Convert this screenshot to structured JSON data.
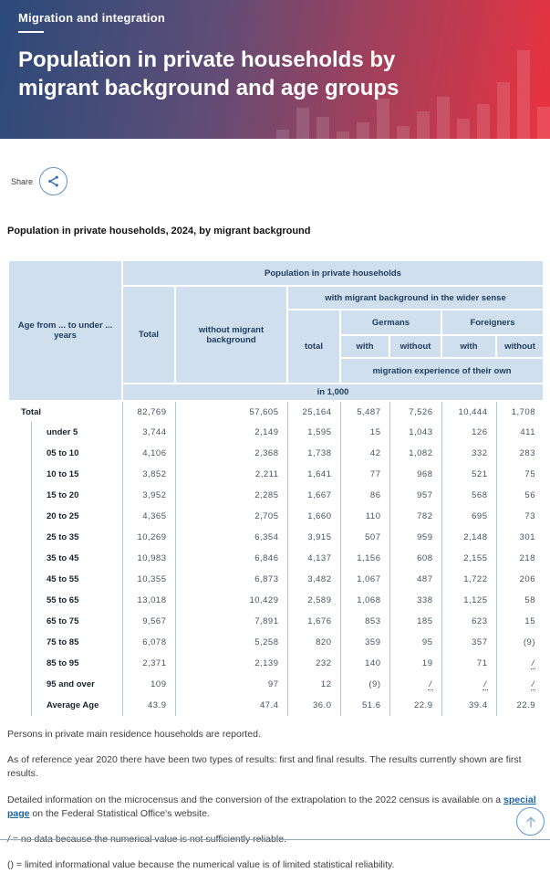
{
  "banner": {
    "eyebrow": "Migration and integration",
    "title": "Population in private households by migrant background and age groups",
    "bars": [
      10,
      34,
      24,
      8,
      18,
      44,
      14,
      30,
      46,
      22,
      38,
      62,
      97,
      35
    ],
    "gradient_start": "#2b4a7a",
    "gradient_end": "#ea3240"
  },
  "share": {
    "label": "Share"
  },
  "table": {
    "caption": "Population in private households, 2024, by migrant background",
    "header": {
      "age_col": "Age from ... to under ... years",
      "population": "Population in private households",
      "total": "Total",
      "without_migrant": "without migrant background",
      "with_migrant": "with migrant background in the wider sense",
      "sub_total": "total",
      "germans": "Germans",
      "foreigners": "Foreigners",
      "with1": "with",
      "without1": "without",
      "with2": "with",
      "without2": "without",
      "migration_experience": "migration experience of their own",
      "unit": "in 1,000"
    },
    "rows": [
      {
        "label": "Total",
        "level": 0,
        "values": [
          "82,769",
          "57,605",
          "25,164",
          "5,487",
          "7,526",
          "10,444",
          "1,708"
        ]
      },
      {
        "label": "under 5",
        "level": 1,
        "values": [
          "3,744",
          "2,149",
          "1,595",
          "15",
          "1,043",
          "126",
          "411"
        ]
      },
      {
        "label": "05 to 10",
        "level": 1,
        "values": [
          "4,106",
          "2,368",
          "1,738",
          "42",
          "1,082",
          "332",
          "283"
        ]
      },
      {
        "label": "10 to 15",
        "level": 1,
        "values": [
          "3,852",
          "2,211",
          "1,641",
          "77",
          "968",
          "521",
          "75"
        ]
      },
      {
        "label": "15 to 20",
        "level": 1,
        "values": [
          "3,952",
          "2,285",
          "1,667",
          "86",
          "957",
          "568",
          "56"
        ]
      },
      {
        "label": "20 to 25",
        "level": 1,
        "values": [
          "4,365",
          "2,705",
          "1,660",
          "110",
          "782",
          "695",
          "73"
        ]
      },
      {
        "label": "25 to 35",
        "level": 1,
        "values": [
          "10,269",
          "6,354",
          "3,915",
          "507",
          "959",
          "2,148",
          "301"
        ]
      },
      {
        "label": "35 to 45",
        "level": 1,
        "values": [
          "10,983",
          "6,846",
          "4,137",
          "1,156",
          "608",
          "2,155",
          "218"
        ]
      },
      {
        "label": "45 to 55",
        "level": 1,
        "values": [
          "10,355",
          "6,873",
          "3,482",
          "1,067",
          "487",
          "1,722",
          "206"
        ]
      },
      {
        "label": "55 to 65",
        "level": 1,
        "values": [
          "13,018",
          "10,429",
          "2,589",
          "1,068",
          "338",
          "1,125",
          "58"
        ]
      },
      {
        "label": "65 to 75",
        "level": 1,
        "values": [
          "9,567",
          "7,891",
          "1,676",
          "853",
          "185",
          "623",
          "15"
        ]
      },
      {
        "label": "75 to 85",
        "level": 1,
        "values": [
          "6,078",
          "5,258",
          "820",
          "359",
          "95",
          "357",
          "(9)"
        ]
      },
      {
        "label": "85 to 95",
        "level": 1,
        "values": [
          "2,371",
          "2,139",
          "232",
          "140",
          "19",
          "71",
          "/"
        ]
      },
      {
        "label": "95 and over",
        "level": 1,
        "values": [
          "109",
          "97",
          "12",
          "(9)",
          "/",
          "/",
          "/"
        ]
      },
      {
        "label": "Average Age",
        "level": 1,
        "values": [
          "43.9",
          "47.4",
          "36.0",
          "51.6",
          "22.9",
          "39.4",
          "22.9"
        ]
      }
    ],
    "header_bg": "#cfdfee",
    "header_text_color": "#1e3a5c"
  },
  "footnotes": [
    "Persons in private main residence households are reported.",
    "As of reference year 2020 there have been two types of results: first and final results. The results currently shown are first results."
  ],
  "footnote_link": {
    "pre": "Detailed information on the microcensus and the conversion of the extrapolation to the 2022 census is available on a ",
    "link": "special page",
    "post": " on the Federal Statistical Office's website."
  },
  "legend": [
    {
      "symbol": "/",
      "text": " = no data because the numerical value is not sufficiently reliable."
    },
    {
      "symbol": "()",
      "text": " = limited informational value because the numerical value is of limited statistical reliability."
    }
  ],
  "colors": {
    "link": "#1567a7",
    "accent_blue": "#5b96d2"
  }
}
